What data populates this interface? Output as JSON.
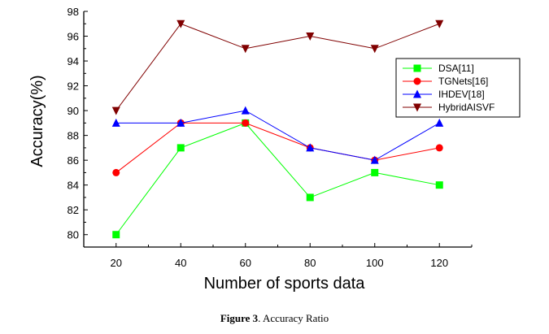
{
  "chart_data": {
    "type": "line",
    "title": "",
    "xlabel": "Number of sports data",
    "ylabel": "Accuracy(%)",
    "x": [
      20,
      40,
      60,
      80,
      100,
      120
    ],
    "xlim": [
      10,
      130
    ],
    "ylim": [
      79,
      98
    ],
    "yticks": [
      80,
      82,
      84,
      86,
      88,
      90,
      92,
      94,
      96,
      98
    ],
    "legend_position": "top-right",
    "series": [
      {
        "name": "DSA[11]",
        "values": [
          80,
          87,
          89,
          83,
          85,
          84
        ],
        "color": "#00ff00",
        "marker": "square"
      },
      {
        "name": "TGNets[16]",
        "values": [
          85,
          89,
          89,
          87,
          86,
          87
        ],
        "color": "#ff0000",
        "marker": "circle"
      },
      {
        "name": "IHDEV[18]",
        "values": [
          89,
          89,
          90,
          87,
          86,
          89
        ],
        "color": "#0000ff",
        "marker": "triangle-up"
      },
      {
        "name": "HybridAISVF",
        "values": [
          90,
          97,
          95,
          96,
          95,
          97
        ],
        "color": "#800000",
        "marker": "triangle-down"
      }
    ]
  },
  "caption": {
    "label": "Figure 3",
    "text": ". Accuracy Ratio"
  }
}
